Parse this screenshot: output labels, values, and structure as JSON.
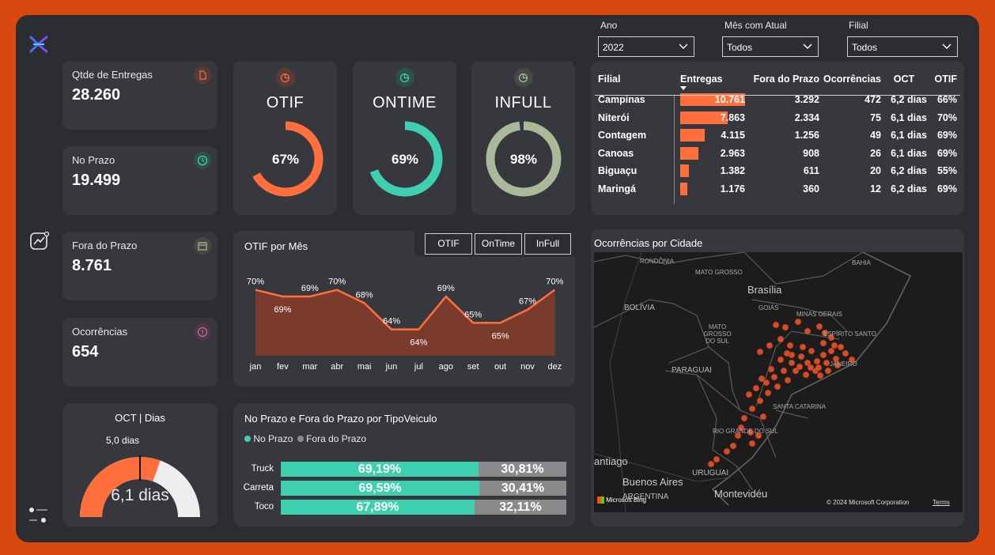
{
  "slicers": {
    "ano": {
      "label": "Ano",
      "value": "2022"
    },
    "mes": {
      "label": "Mês com Atual",
      "value": "Todos"
    },
    "filial": {
      "label": "Filial",
      "value": "Todos"
    }
  },
  "kpis": {
    "entregas": {
      "label": "Qtde de Entregas",
      "value": "28.260",
      "color": "#e8704a"
    },
    "noprazo": {
      "label": "No Prazo",
      "value": "19.499",
      "color": "#3ecfae"
    },
    "foraprazo": {
      "label": "Fora do Prazo",
      "value": "8.761",
      "color": "#a7b59a"
    },
    "ocorrencias": {
      "label": "Ocorrências",
      "value": "654",
      "color": "#c06a9a"
    }
  },
  "donuts": {
    "otif": {
      "title": "OTIF",
      "value_label": "67%",
      "value": 0.67,
      "color": "#ff6f3c"
    },
    "ontime": {
      "title": "ONTIME",
      "value_label": "69%",
      "value": 0.69,
      "color": "#3ecfae"
    },
    "infull": {
      "title": "INFULL",
      "value_label": "98%",
      "value": 0.98,
      "color": "#a9b99a"
    }
  },
  "table": {
    "headers": [
      "Filial",
      "Entregas",
      "Fora do Prazo",
      "Ocorrências",
      "OCT",
      "OTIF"
    ],
    "rows": [
      {
        "filial": "Campinas",
        "entregas": "10.761",
        "fora": "3.292",
        "oco": "472",
        "oct": "6,2 dias",
        "otif": "66%"
      },
      {
        "filial": "Niterói",
        "entregas": "7.863",
        "fora": "2.334",
        "oco": "75",
        "oct": "6,1 dias",
        "otif": "70%"
      },
      {
        "filial": "Contagem",
        "entregas": "4.115",
        "fora": "1.256",
        "oco": "49",
        "oct": "6,1 dias",
        "otif": "69%"
      },
      {
        "filial": "Canoas",
        "entregas": "2.963",
        "fora": "908",
        "oco": "26",
        "oct": "6,1 dias",
        "otif": "69%"
      },
      {
        "filial": "Biguaçu",
        "entregas": "1.382",
        "fora": "611",
        "oco": "20",
        "oct": "6,2 dias",
        "otif": "55%"
      },
      {
        "filial": "Maringá",
        "entregas": "1.176",
        "fora": "360",
        "oco": "12",
        "oct": "6,2 dias",
        "otif": "69%"
      }
    ],
    "bar_color": "#ff6f3c"
  },
  "otif_mes": {
    "title": "OTIF por Mês",
    "buttons": [
      "OTIF",
      "OnTime",
      "InFull"
    ]
  },
  "oct": {
    "title": "OCT | Dias",
    "value_label": "6,1 dias",
    "target_label": "5,0 dias",
    "min": 0,
    "max": 10,
    "value": 6.1,
    "target": 5.0
  },
  "veiculo": {
    "title": "No Prazo e Fora do Prazo por TipoVeiculo",
    "legend_noprazo": "No Prazo",
    "legend_fora": "Fora do Prazo",
    "rows": [
      {
        "label": "Truck",
        "noprazo": "69,19%",
        "fora": "30,81%",
        "p": 69.19
      },
      {
        "label": "Carreta",
        "noprazo": "69,59%",
        "fora": "30,41%",
        "p": 69.59
      },
      {
        "label": "Toco",
        "noprazo": "67,89%",
        "fora": "32,11%",
        "p": 67.89
      }
    ]
  },
  "map": {
    "title": "Ocorrências por Cidade",
    "places": [
      "RONDÔNIA",
      "BAHIA",
      "MATO GROSSO",
      "Brasília",
      "GOIÁS",
      "BOLÍVIA",
      "MATO GROSSO DO SUL",
      "MINAS GERAIS",
      "ESPÍRITO SANTO",
      "PARAGUAI",
      "JANEIRO",
      "SANTA CATARINA",
      "RIO GRANDE DO SUL",
      "URUGUAI",
      "Buenos Aires",
      "ARGENTINA",
      "antiago",
      "Montevidéu"
    ],
    "bing": "Microsoft Bing",
    "copyright": "© 2024 Microsoft Corporation",
    "terms": "Terms"
  },
  "chart_data": {
    "type": "area",
    "title": "OTIF por Mês",
    "categories": [
      "jan",
      "fev",
      "mar",
      "abr",
      "mai",
      "jun",
      "jul",
      "ago",
      "set",
      "out",
      "nov",
      "dez"
    ],
    "values": [
      70,
      69,
      69,
      70,
      68,
      64,
      64,
      69,
      65,
      65,
      67,
      70
    ],
    "labels": [
      "70%",
      "69%",
      "69%",
      "70%",
      "68%",
      "64%",
      "64%",
      "69%",
      "65%",
      "65%",
      "67%",
      "70%"
    ],
    "colors": {
      "line": "#ff6f3c",
      "fill": "#7a3a2c"
    }
  }
}
